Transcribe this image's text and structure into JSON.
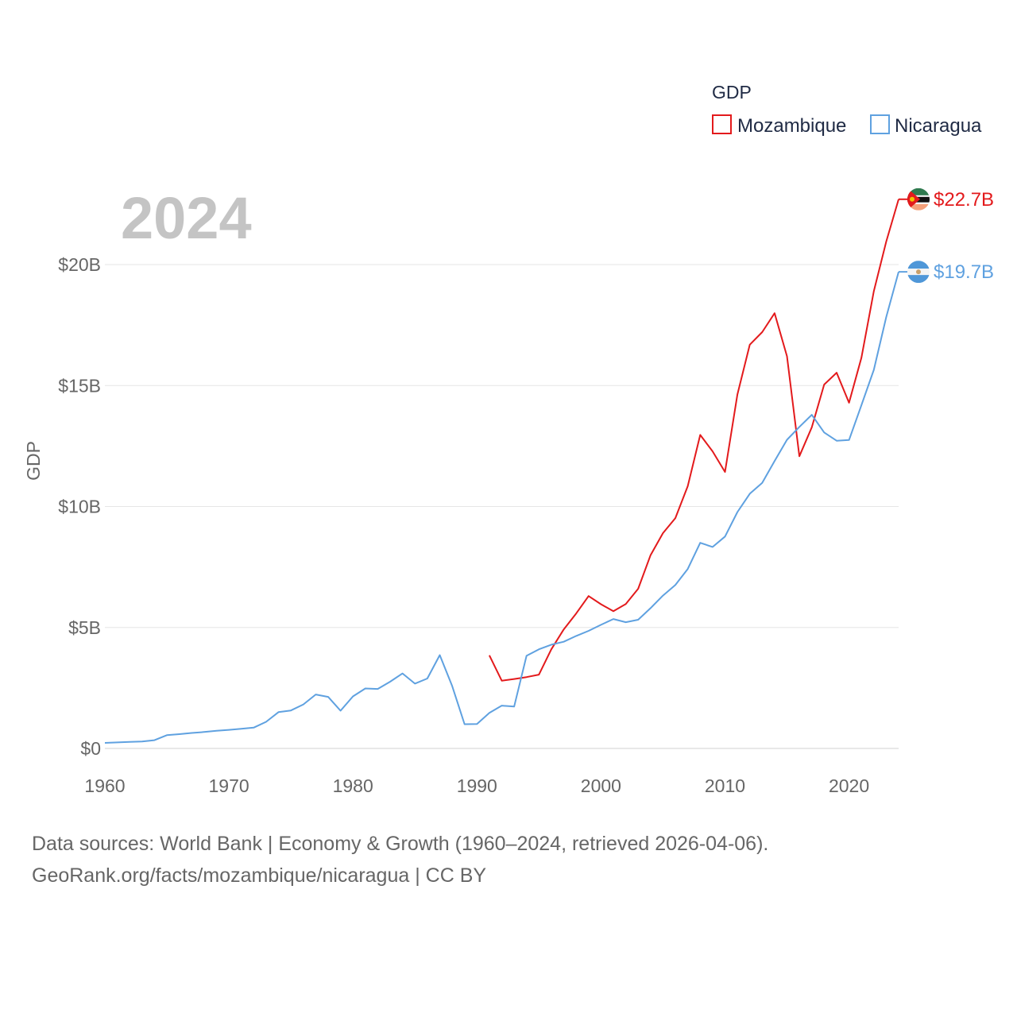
{
  "chart_data": {
    "type": "line",
    "legend_title": "GDP",
    "year_label": "2024",
    "ylabel": "GDP",
    "x_ticks": [
      1960,
      1970,
      1980,
      1990,
      2000,
      2010,
      2020
    ],
    "y_ticks": [
      {
        "value": 0,
        "label": "$0"
      },
      {
        "value": 5,
        "label": "$5B"
      },
      {
        "value": 10,
        "label": "$10B"
      },
      {
        "value": 15,
        "label": "$15B"
      },
      {
        "value": 20,
        "label": "$20B"
      }
    ],
    "xlim": [
      1960,
      2024
    ],
    "ylim": [
      0,
      23
    ],
    "units": "billions USD",
    "series": [
      {
        "name": "Mozambique",
        "color": "#e31a1c",
        "end_label": "$22.7B",
        "flag": "mozambique-flag-icon",
        "x": [
          1991,
          1992,
          1993,
          1994,
          1995,
          1996,
          1997,
          1998,
          1999,
          2000,
          2001,
          2002,
          2003,
          2004,
          2005,
          2006,
          2007,
          2008,
          2009,
          2010,
          2011,
          2012,
          2013,
          2014,
          2015,
          2016,
          2017,
          2018,
          2019,
          2020,
          2021,
          2022,
          2023,
          2024
        ],
        "values": [
          3.85,
          2.8,
          2.87,
          2.95,
          3.05,
          4.1,
          4.92,
          5.58,
          6.3,
          5.96,
          5.67,
          5.97,
          6.6,
          7.99,
          8.9,
          9.52,
          10.84,
          12.96,
          12.28,
          11.43,
          14.63,
          16.69,
          17.21,
          17.99,
          16.21,
          12.08,
          13.27,
          15.04,
          15.53,
          14.29,
          16.15,
          18.9,
          20.95,
          22.7
        ]
      },
      {
        "name": "Nicaragua",
        "color": "#5fa1e0",
        "end_label": "$19.7B",
        "flag": "nicaragua-flag-icon",
        "x": [
          1960,
          1961,
          1962,
          1963,
          1964,
          1965,
          1966,
          1967,
          1968,
          1969,
          1970,
          1971,
          1972,
          1973,
          1974,
          1975,
          1976,
          1977,
          1978,
          1979,
          1980,
          1981,
          1982,
          1983,
          1984,
          1985,
          1986,
          1987,
          1988,
          1989,
          1990,
          1991,
          1992,
          1993,
          1994,
          1995,
          1996,
          1997,
          1998,
          1999,
          2000,
          2001,
          2002,
          2003,
          2004,
          2005,
          2006,
          2007,
          2008,
          2009,
          2010,
          2011,
          2012,
          2013,
          2014,
          2015,
          2016,
          2017,
          2018,
          2019,
          2020,
          2021,
          2022,
          2023,
          2024
        ],
        "values": [
          0.23,
          0.25,
          0.27,
          0.29,
          0.34,
          0.55,
          0.59,
          0.64,
          0.68,
          0.73,
          0.77,
          0.81,
          0.86,
          1.1,
          1.5,
          1.57,
          1.82,
          2.23,
          2.13,
          1.56,
          2.15,
          2.48,
          2.46,
          2.76,
          3.1,
          2.68,
          2.89,
          3.86,
          2.58,
          1.0,
          1.01,
          1.47,
          1.77,
          1.73,
          3.83,
          4.1,
          4.29,
          4.41,
          4.65,
          4.86,
          5.11,
          5.35,
          5.22,
          5.32,
          5.8,
          6.32,
          6.76,
          7.42,
          8.5,
          8.33,
          8.76,
          9.77,
          10.53,
          10.98,
          11.88,
          12.76,
          13.29,
          13.79,
          13.06,
          12.72,
          12.75,
          14.19,
          15.65,
          17.83,
          19.7
        ]
      }
    ]
  },
  "footer": {
    "line1": "Data sources: World Bank | Economy & Growth (1960–2024, retrieved 2026-04-06).",
    "line2": "GeoRank.org/facts/mozambique/nicaragua | CC BY"
  }
}
